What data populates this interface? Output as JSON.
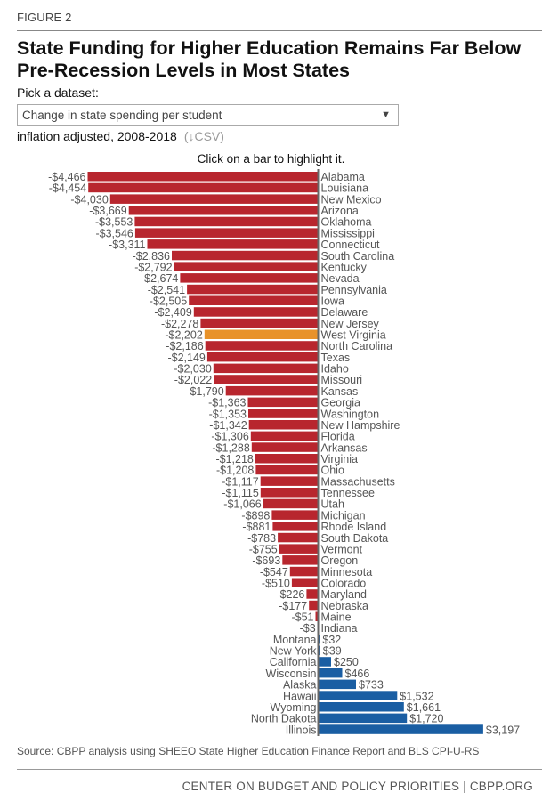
{
  "figure_label": "FIGURE 2",
  "title": "State Funding for Higher Education Remains Far Below Pre-Recession Levels in Most States",
  "dataset_picker": {
    "label": "Pick a dataset:",
    "selected": "Change in state spending per student",
    "arrow": "▼"
  },
  "subtitle": "inflation adjusted, 2008-2018",
  "csv_link": "(↓CSV)",
  "hint": "Click on a bar to highlight it.",
  "source": "Source: CBPP analysis using SHEEO State Higher Education Finance Report and BLS CPI-U-RS",
  "footer": "CENTER ON BUDGET AND POLICY PRIORITIES | CBPP.ORG",
  "colors": {
    "negative": "#b8262e",
    "positive": "#1a5ea3",
    "highlight": "#e8922a",
    "axis": "#666666"
  },
  "chart_data": {
    "type": "bar",
    "orientation": "horizontal",
    "title": "State Funding for Higher Education Remains Far Below Pre-Recession Levels in Most States",
    "xlabel": "Change in state spending per student, inflation adjusted, 2008-2018 ($)",
    "ylabel": "",
    "xlim": [
      -4466,
      3197
    ],
    "highlighted": "West Virginia",
    "categories": [
      "Alabama",
      "Louisiana",
      "New Mexico",
      "Arizona",
      "Oklahoma",
      "Mississippi",
      "Connecticut",
      "South Carolina",
      "Kentucky",
      "Nevada",
      "Pennsylvania",
      "Iowa",
      "Delaware",
      "New Jersey",
      "West Virginia",
      "North Carolina",
      "Texas",
      "Idaho",
      "Missouri",
      "Kansas",
      "Georgia",
      "Washington",
      "New Hampshire",
      "Florida",
      "Arkansas",
      "Virginia",
      "Ohio",
      "Massachusetts",
      "Tennessee",
      "Utah",
      "Michigan",
      "Rhode Island",
      "South Dakota",
      "Vermont",
      "Oregon",
      "Minnesota",
      "Colorado",
      "Maryland",
      "Nebraska",
      "Maine",
      "Indiana",
      "Montana",
      "New York",
      "California",
      "Wisconsin",
      "Alaska",
      "Hawaii",
      "Wyoming",
      "North Dakota",
      "Illinois"
    ],
    "values": [
      -4466,
      -4454,
      -4030,
      -3669,
      -3553,
      -3546,
      -3311,
      -2836,
      -2792,
      -2674,
      -2541,
      -2505,
      -2409,
      -2278,
      -2202,
      -2186,
      -2149,
      -2030,
      -2022,
      -1790,
      -1363,
      -1353,
      -1342,
      -1306,
      -1288,
      -1218,
      -1208,
      -1117,
      -1115,
      -1066,
      -898,
      -881,
      -783,
      -755,
      -693,
      -547,
      -510,
      -226,
      -177,
      -51,
      -3,
      32,
      39,
      250,
      466,
      733,
      1532,
      1661,
      1720,
      3197
    ],
    "value_labels": [
      "-$4,466",
      "-$4,454",
      "-$4,030",
      "-$3,669",
      "-$3,553",
      "-$3,546",
      "-$3,311",
      "-$2,836",
      "-$2,792",
      "-$2,674",
      "-$2,541",
      "-$2,505",
      "-$2,409",
      "-$2,278",
      "-$2,202",
      "-$2,186",
      "-$2,149",
      "-$2,030",
      "-$2,022",
      "-$1,790",
      "-$1,363",
      "-$1,353",
      "-$1,342",
      "-$1,306",
      "-$1,288",
      "-$1,218",
      "-$1,208",
      "-$1,117",
      "-$1,115",
      "-$1,066",
      "-$898",
      "-$881",
      "-$783",
      "-$755",
      "-$693",
      "-$547",
      "-$510",
      "-$226",
      "-$177",
      "-$51",
      "-$3",
      "$32",
      "$39",
      "$250",
      "$466",
      "$733",
      "$1,532",
      "$1,661",
      "$1,720",
      "$3,197"
    ],
    "grid": false,
    "legend": "none"
  }
}
